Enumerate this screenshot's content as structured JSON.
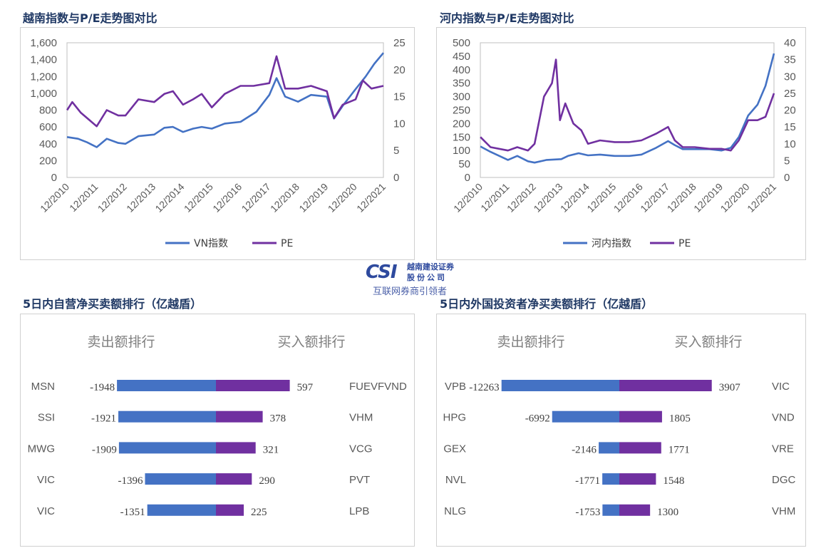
{
  "logo": {
    "mark": "CSI",
    "name_cn": "越南建设证券",
    "name_cn2": "股份公司",
    "slogan": "互联网券商引领者"
  },
  "colors": {
    "blue": "#4472c4",
    "purple": "#7030a0",
    "title": "#1f3864"
  },
  "chart_data": [
    {
      "type": "line",
      "title": "越南指数与P/E走势图对比",
      "y_left": {
        "ticks": [
          "1,600",
          "1,400",
          "1,200",
          "1,000",
          "800",
          "600",
          "400",
          "200",
          "0"
        ],
        "lim": [
          0,
          1600
        ]
      },
      "y_right": {
        "ticks": [
          "25",
          "20",
          "15",
          "10",
          "5",
          "0"
        ],
        "lim": [
          0,
          25
        ]
      },
      "x_ticks": [
        "12/2010",
        "12/2011",
        "12/2012",
        "12/2013",
        "12/2014",
        "12/2015",
        "12/2016",
        "12/2017",
        "12/2018",
        "12/2019",
        "12/2020",
        "12/2021"
      ],
      "x_lim": [
        2010.917,
        2021.917
      ],
      "legend": "bottom",
      "series": [
        {
          "name": "VN指数",
          "axis": "left",
          "color": "#4472c4",
          "points": [
            [
              2010.92,
              480
            ],
            [
              2011.3,
              460
            ],
            [
              2011.6,
              420
            ],
            [
              2011.95,
              360
            ],
            [
              2012.3,
              460
            ],
            [
              2012.7,
              410
            ],
            [
              2012.95,
              400
            ],
            [
              2013.4,
              490
            ],
            [
              2013.95,
              510
            ],
            [
              2014.3,
              590
            ],
            [
              2014.6,
              600
            ],
            [
              2014.95,
              540
            ],
            [
              2015.3,
              580
            ],
            [
              2015.6,
              600
            ],
            [
              2015.95,
              580
            ],
            [
              2016.4,
              640
            ],
            [
              2016.95,
              660
            ],
            [
              2017.5,
              780
            ],
            [
              2017.95,
              980
            ],
            [
              2018.2,
              1180
            ],
            [
              2018.5,
              960
            ],
            [
              2018.95,
              900
            ],
            [
              2019.4,
              980
            ],
            [
              2019.95,
              960
            ],
            [
              2020.2,
              700
            ],
            [
              2020.5,
              850
            ],
            [
              2020.95,
              1050
            ],
            [
              2021.3,
              1200
            ],
            [
              2021.6,
              1350
            ],
            [
              2021.917,
              1480
            ]
          ]
        },
        {
          "name": "PE",
          "axis": "right",
          "color": "#7030a0",
          "points": [
            [
              2010.92,
              12.5
            ],
            [
              2011.1,
              14
            ],
            [
              2011.4,
              12
            ],
            [
              2011.95,
              9.5
            ],
            [
              2012.3,
              12.5
            ],
            [
              2012.7,
              11.5
            ],
            [
              2012.95,
              11.5
            ],
            [
              2013.4,
              14.5
            ],
            [
              2013.95,
              14
            ],
            [
              2014.3,
              15.5
            ],
            [
              2014.6,
              16
            ],
            [
              2014.95,
              13.5
            ],
            [
              2015.3,
              14.5
            ],
            [
              2015.6,
              15.5
            ],
            [
              2015.95,
              13
            ],
            [
              2016.4,
              15.5
            ],
            [
              2016.95,
              17
            ],
            [
              2017.4,
              17
            ],
            [
              2017.95,
              17.5
            ],
            [
              2018.2,
              22.5
            ],
            [
              2018.5,
              16.5
            ],
            [
              2018.95,
              16.5
            ],
            [
              2019.4,
              17
            ],
            [
              2019.95,
              16
            ],
            [
              2020.2,
              11
            ],
            [
              2020.5,
              13.5
            ],
            [
              2020.95,
              14.5
            ],
            [
              2021.2,
              18
            ],
            [
              2021.5,
              16.5
            ],
            [
              2021.917,
              17
            ]
          ]
        }
      ]
    },
    {
      "type": "line",
      "title": "河内指数与P/E走势图对比",
      "y_left": {
        "ticks": [
          "500",
          "450",
          "400",
          "350",
          "300",
          "250",
          "200",
          "150",
          "100",
          "50",
          "0"
        ],
        "lim": [
          0,
          500
        ]
      },
      "y_right": {
        "ticks": [
          "40",
          "35",
          "30",
          "25",
          "20",
          "15",
          "10",
          "5",
          "0"
        ],
        "lim": [
          0,
          40
        ]
      },
      "x_ticks": [
        "12/2010",
        "12/2011",
        "12/2012",
        "12/2013",
        "12/2014",
        "12/2015",
        "12/2016",
        "12/2017",
        "12/2018",
        "12/2019",
        "12/2020",
        "12/2021"
      ],
      "x_lim": [
        2010.917,
        2021.917
      ],
      "legend": "bottom",
      "series": [
        {
          "name": "河内指数",
          "axis": "left",
          "color": "#4472c4",
          "points": [
            [
              2010.92,
              115
            ],
            [
              2011.3,
              95
            ],
            [
              2011.95,
              65
            ],
            [
              2012.3,
              80
            ],
            [
              2012.7,
              60
            ],
            [
              2012.95,
              55
            ],
            [
              2013.4,
              65
            ],
            [
              2013.95,
              68
            ],
            [
              2014.2,
              80
            ],
            [
              2014.6,
              90
            ],
            [
              2014.95,
              82
            ],
            [
              2015.4,
              85
            ],
            [
              2015.95,
              80
            ],
            [
              2016.5,
              80
            ],
            [
              2016.95,
              85
            ],
            [
              2017.5,
              110
            ],
            [
              2017.95,
              135
            ],
            [
              2018.2,
              120
            ],
            [
              2018.5,
              105
            ],
            [
              2018.95,
              105
            ],
            [
              2019.5,
              105
            ],
            [
              2019.95,
              100
            ],
            [
              2020.3,
              110
            ],
            [
              2020.6,
              150
            ],
            [
              2020.95,
              230
            ],
            [
              2021.3,
              270
            ],
            [
              2021.6,
              340
            ],
            [
              2021.917,
              460
            ]
          ]
        },
        {
          "name": "PE",
          "axis": "right",
          "color": "#7030a0",
          "points": [
            [
              2010.92,
              12
            ],
            [
              2011.3,
              9
            ],
            [
              2011.95,
              8
            ],
            [
              2012.3,
              9
            ],
            [
              2012.7,
              8
            ],
            [
              2012.95,
              10
            ],
            [
              2013.3,
              24
            ],
            [
              2013.6,
              28
            ],
            [
              2013.75,
              35
            ],
            [
              2013.9,
              17
            ],
            [
              2014.1,
              22
            ],
            [
              2014.4,
              16
            ],
            [
              2014.7,
              14
            ],
            [
              2014.95,
              10
            ],
            [
              2015.4,
              11
            ],
            [
              2015.95,
              10.5
            ],
            [
              2016.5,
              10.5
            ],
            [
              2016.95,
              11
            ],
            [
              2017.5,
              13
            ],
            [
              2017.95,
              15
            ],
            [
              2018.2,
              11
            ],
            [
              2018.5,
              9
            ],
            [
              2018.95,
              9
            ],
            [
              2019.5,
              8.5
            ],
            [
              2019.95,
              8.5
            ],
            [
              2020.3,
              8
            ],
            [
              2020.6,
              11
            ],
            [
              2020.95,
              17
            ],
            [
              2021.3,
              17
            ],
            [
              2021.6,
              18
            ],
            [
              2021.917,
              25
            ]
          ]
        }
      ]
    },
    {
      "type": "bar",
      "title": "5日内自营净买卖额排行（亿越盾）",
      "sell_header": "卖出额排行",
      "buy_header": "买入额排行",
      "sell": [
        {
          "name": "MSN",
          "value": -1948
        },
        {
          "name": "SSI",
          "value": -1921
        },
        {
          "name": "MWG",
          "value": -1909
        },
        {
          "name": "VIC",
          "value": -1396
        },
        {
          "name": "VIC",
          "value": -1351
        }
      ],
      "buy": [
        {
          "name": "FUEVFVND",
          "value": 597
        },
        {
          "name": "VHM",
          "value": 378
        },
        {
          "name": "VCG",
          "value": 321
        },
        {
          "name": "PVT",
          "value": 290
        },
        {
          "name": "LPB",
          "value": 225
        }
      ]
    },
    {
      "type": "bar",
      "title": "5日内外国投资者净买卖额排行（亿越盾）",
      "sell_header": "卖出额排行",
      "buy_header": "买入额排行",
      "sell": [
        {
          "name": "VPB",
          "value": -12263
        },
        {
          "name": "HPG",
          "value": -6992
        },
        {
          "name": "GEX",
          "value": -2146
        },
        {
          "name": "NVL",
          "value": -1771
        },
        {
          "name": "NLG",
          "value": -1753
        }
      ],
      "buy": [
        {
          "name": "VIC",
          "value": 3907
        },
        {
          "name": "VND",
          "value": 1805
        },
        {
          "name": "VRE",
          "value": 1771
        },
        {
          "name": "DGC",
          "value": 1548
        },
        {
          "name": "VHM",
          "value": 1300
        }
      ]
    }
  ]
}
